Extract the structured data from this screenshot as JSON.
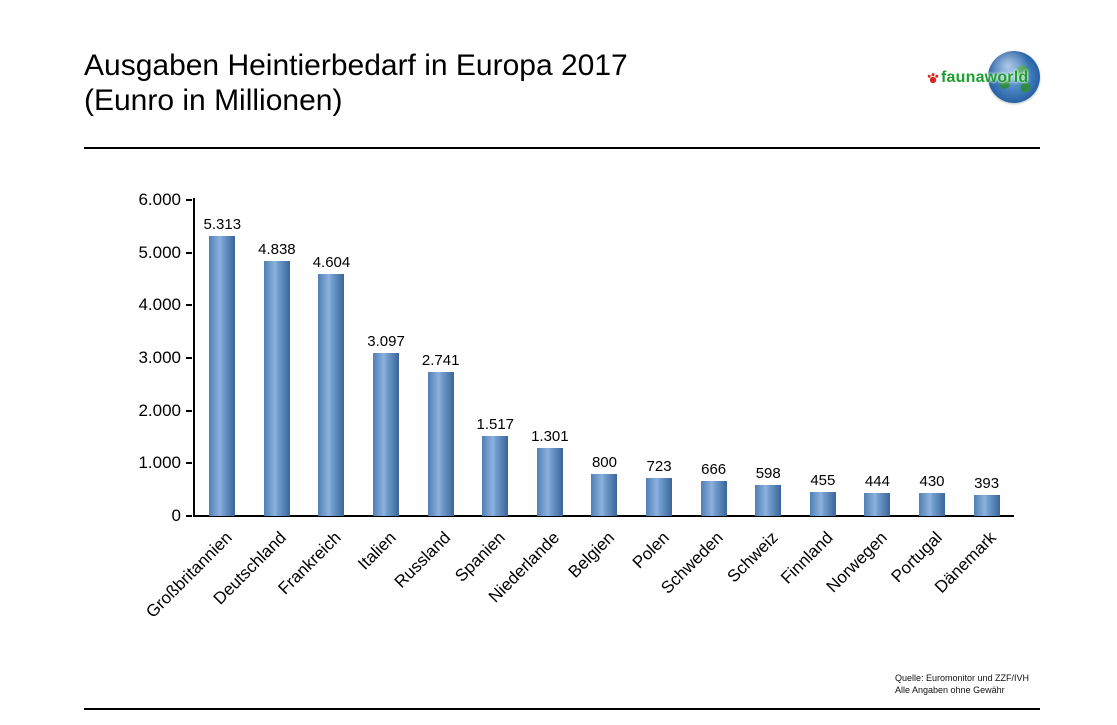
{
  "header": {
    "title_line1": "Ausgaben Heintierbedarf in Europa 2017",
    "title_line2": "(Eunro in Millionen)",
    "logo_text": "faunaworld"
  },
  "chart_data": {
    "type": "bar",
    "title": "Ausgaben Heintierbedarf in Europa 2017 (Eunro in Millionen)",
    "categories": [
      "Großbritannien",
      "Deutschland",
      "Frankreich",
      "Italien",
      "Russland",
      "Spanien",
      "Niederlande",
      "Belgien",
      "Polen",
      "Schweden",
      "Schweiz",
      "Finnland",
      "Norwegen",
      "Portugal",
      "Dänemark"
    ],
    "values": [
      5313,
      4838,
      4604,
      3097,
      2741,
      1517,
      1301,
      800,
      723,
      666,
      598,
      455,
      444,
      430,
      393
    ],
    "value_labels": [
      "5.313",
      "4.838",
      "4.604",
      "3.097",
      "2.741",
      "1.517",
      "1.301",
      "800",
      "723",
      "666",
      "598",
      "455",
      "444",
      "430",
      "393"
    ],
    "xlabel": "",
    "ylabel": "",
    "ylim": [
      0,
      6000
    ],
    "ytick_labels": [
      "0",
      "1.000",
      "2.000",
      "3.000",
      "4.000",
      "5.000",
      "6.000"
    ],
    "grid": false,
    "legend": false,
    "bar_color_light": "#8db2de",
    "bar_color_dark": "#3a6598"
  },
  "footer": {
    "source_line1": "Quelle: Euromonitor und ZZF/IVH",
    "source_line2": "Alle Angaben ohne Gewähr"
  }
}
